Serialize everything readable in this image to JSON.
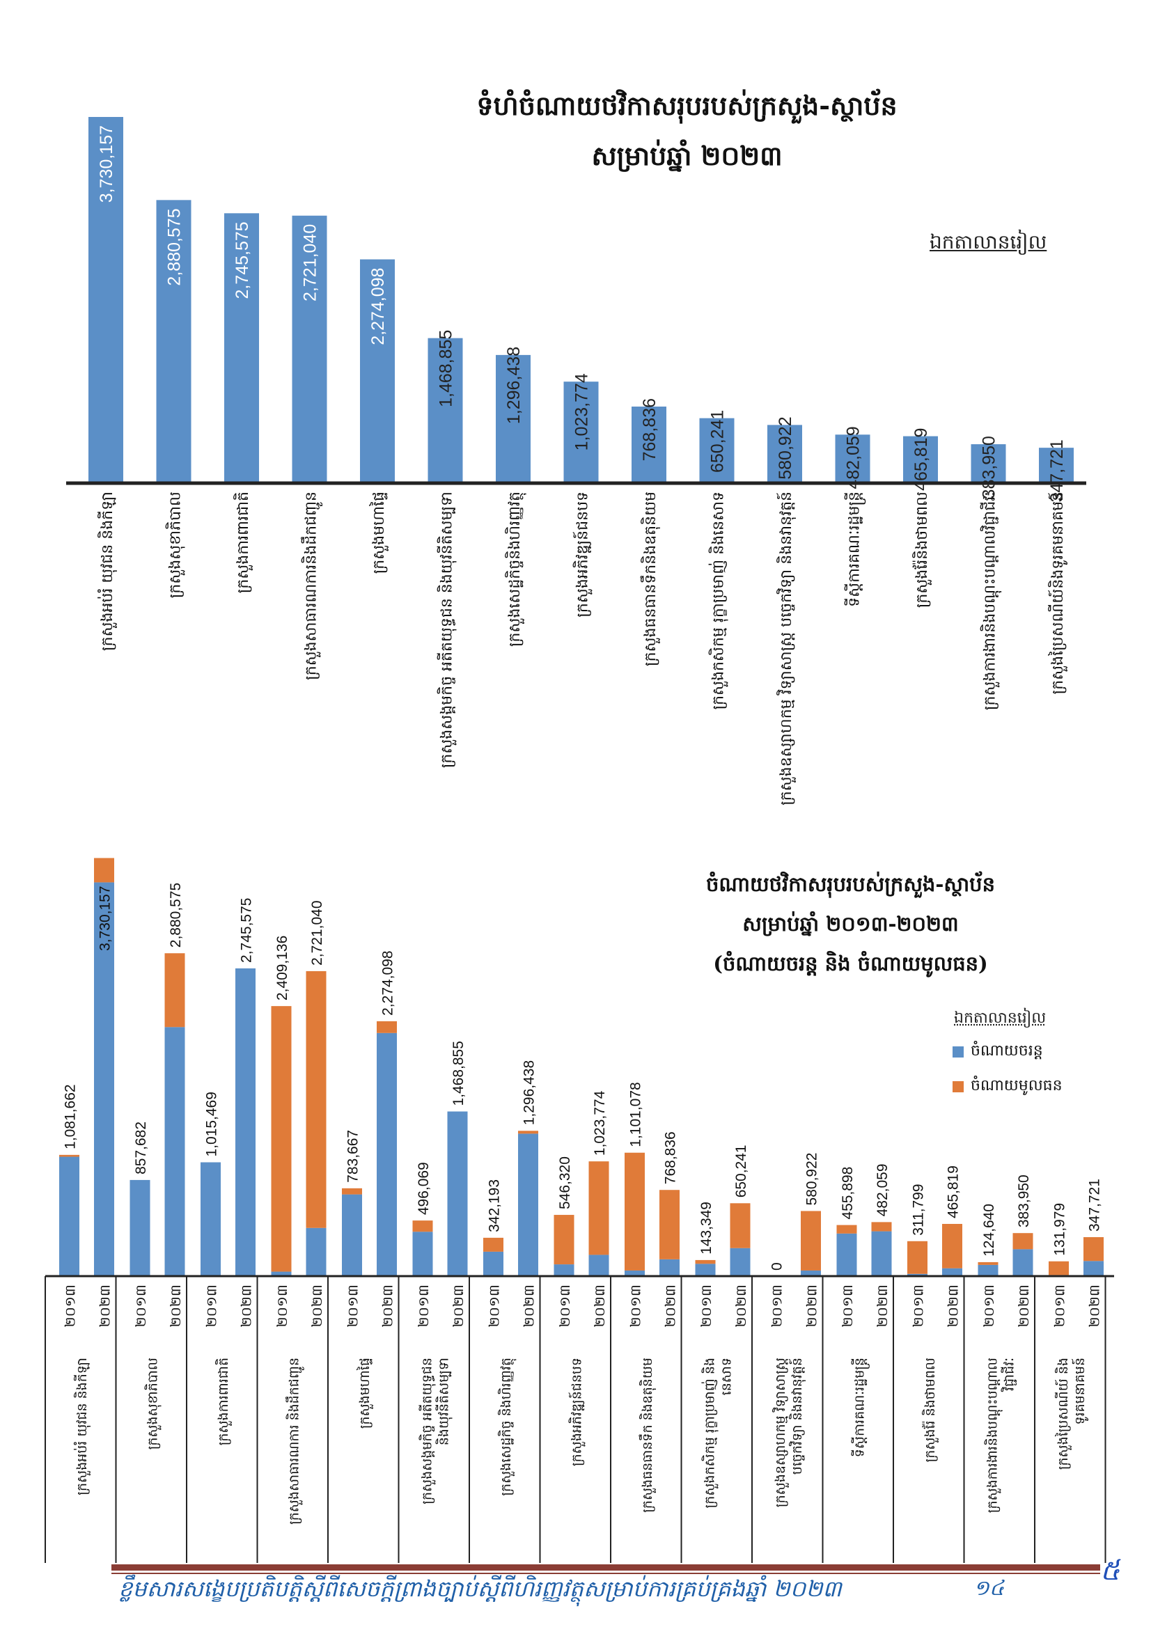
{
  "colors": {
    "current": "#5b8fc7",
    "capital": "#e07b39",
    "axis": "#222222",
    "footer_text": "#1f5fa8",
    "footer_rule": "#8b3d35"
  },
  "chart_data": [
    {
      "type": "bar",
      "title": "ទំហំចំណាយថវិកាសរុបរបស់ក្រសួង-ស្ថាប័ន",
      "subtitle": "សម្រាប់ឆ្នាំ ២០២៣",
      "unit_label": "ឯកតាលានរៀល",
      "xlabel": "",
      "ylabel": "",
      "grid": false,
      "categories": [
        "ក្រសួងអប់រំ យុវជន និងកីឡា",
        "ក្រសួងសុខាភិបាល",
        "ក្រសួងការពារជាតិ",
        "ក្រសួងសាធារណការនិងដឹកជញ្ជូន",
        "ក្រសួងមហាផ្ទៃ",
        "ក្រសួងសង្គមកិច្ច អតីតយុទ្ធជន និងយុវនីតិសម្បទា",
        "ក្រសួងសេដ្ឋកិច្ចនិងហិរញ្ញវត្ថុ",
        "ក្រសួងអភិវឌ្ឍន៍ជនបទ",
        "ក្រសួងធនធានទឹកនិងឧតុនិយម",
        "ក្រសួងកសិកម្ម រុក្ខាប្រមាញ់ និងនេសាទ",
        "ក្រសួងឧស្សាហកម្ម វិទ្យាសាស្ត្រ បច្ចេកវិទ្យា និងនវានុវត្តន៍",
        "ទីស្ដីការគណៈរដ្ឋមន្ត្រី",
        "ក្រសួងរ៉ែនិងថាមពល",
        "ក្រសួងការងារនិងបណ្ដុះបណ្ដាលវិជ្ជាជីវៈ",
        "ក្រសួងប្រៃសណីយ៍និងទូរគមនាគមន៍"
      ],
      "values": [
        3730157,
        2880575,
        2745575,
        2721040,
        2274098,
        1468855,
        1296438,
        1023774,
        768836,
        650241,
        580922,
        482059,
        465819,
        383950,
        347721
      ],
      "value_labels": [
        "3,730,157",
        "2,880,575",
        "2,745,575",
        "2,721,040",
        "2,274,098",
        "1,468,855",
        "1,296,438",
        "1,023,774",
        "768,836",
        "650,241",
        "580,922",
        "482,059",
        "465,819",
        "383,950",
        "347,721"
      ],
      "ylim": [
        0,
        3730157
      ]
    },
    {
      "type": "bar",
      "stacked": true,
      "title": "ចំណាយថវិកាសរុបរបស់ក្រសួង-ស្ថាប័ន",
      "subtitle": "សម្រាប់ឆ្នាំ ២០១៣-២០២៣",
      "subtitle2": "(ចំណាយចរន្ត និង ចំណាយមូលធន)",
      "unit_label": "ឯកតាលានរៀល",
      "legend_position": "right",
      "grid": false,
      "years": [
        "២០១៣",
        "២០២៣"
      ],
      "groups": [
        [
          "ក្រសួងអប់រំ យុវជន និងកីឡា"
        ],
        [
          "ក្រសួងសុខាភិបាល"
        ],
        [
          "ក្រសួងការពារជាតិ"
        ],
        [
          "ក្រសួងសាធារណការ និងដឹកជញ្ជូន"
        ],
        [
          "ក្រសួងមហាផ្ទៃ"
        ],
        [
          "ក្រសួងសង្គមកិច្ច អតីតយុទ្ធជន",
          "និងយុវនីតិសម្បទា"
        ],
        [
          "ក្រសួងសេដ្ឋកិច្ច និងហិរញ្ញវត្ថុ"
        ],
        [
          "ក្រសួងអភិវឌ្ឍន៍ជនបទ"
        ],
        [
          "ក្រសួងធនធានទឹក និងឧតុនិយម"
        ],
        [
          "ក្រសួងកសិកម្ម រុក្ខាប្រមាញ់ និង",
          "នេសាទ"
        ],
        [
          "ក្រសួងឧស្សាហកម្ម វិទ្យាសាស្ត្រ",
          "បច្ចេកវិទ្យា និងនវានុវត្តន៍"
        ],
        [
          "ទីស្ដីការគណៈរដ្ឋមន្ត្រី"
        ],
        [
          "ក្រសួងរ៉ែ និងថាមពល"
        ],
        [
          "ក្រសួងការងារនិងបណ្ដុះបណ្ដាល",
          "វិជ្ជាជីវៈ"
        ],
        [
          "ក្រសួងប្រៃសណីយ៍ និង",
          "ទូរគមនាគមន៍"
        ]
      ],
      "series": [
        {
          "name": "ចំណាយចរន្ត",
          "key": "current",
          "values": [
            1065000,
            3513000,
            857682,
            2222000,
            1015469,
            2745575,
            40000,
            430000,
            729000,
            2169000,
            396000,
            1468855,
            218000,
            1271000,
            105000,
            190000,
            50000,
            150000,
            110000,
            250000,
            0,
            50000,
            380000,
            400000,
            20000,
            70000,
            100000,
            240000,
            10000,
            135000
          ]
        },
        {
          "name": "ចំណាយមូលធន",
          "key": "capital",
          "values": [
            16662,
            217157,
            0,
            658575,
            0,
            0,
            2369136,
            2291040,
            54667,
            105098,
            100069,
            0,
            124193,
            25438,
            441320,
            833774,
            1051078,
            618836,
            33349,
            400241,
            0,
            530922,
            75898,
            82059,
            291799,
            395819,
            24640,
            143950,
            121979,
            212721
          ]
        }
      ],
      "totals": [
        1081662,
        3730157,
        857682,
        2880575,
        1015469,
        2745575,
        2409136,
        2721040,
        783667,
        2274098,
        496069,
        1468855,
        342193,
        1296438,
        546320,
        1023774,
        1101078,
        768836,
        143349,
        650241,
        0,
        580922,
        455898,
        482059,
        311799,
        465819,
        124640,
        383950,
        131979,
        347721
      ],
      "total_labels": [
        "1,081,662",
        "3,730,157",
        "857,682",
        "2,880,575",
        "1,015,469",
        "2,745,575",
        "2,409,136",
        "2,721,040",
        "783,667",
        "2,274,098",
        "496,069",
        "1,468,855",
        "342,193",
        "1,296,438",
        "546,320",
        "1,023,774",
        "1,101,078",
        "768,836",
        "143,349",
        "650,241",
        "0",
        "580,922",
        "455,898",
        "482,059",
        "311,799",
        "465,819",
        "124,640",
        "383,950",
        "131,979",
        "347,721"
      ],
      "ylim": [
        0,
        3730157
      ]
    }
  ],
  "chart1": {
    "title": "ទំហំចំណាយថវិកាសរុបរបស់ក្រសួង-ស្ថាប័ន",
    "subtitle": "សម្រាប់ឆ្នាំ ២០២៣",
    "unit": "ឯកតាលានរៀល"
  },
  "chart2": {
    "title": "ចំណាយថវិកាសរុបរបស់ក្រសួង-ស្ថាប័ន",
    "subtitle": "សម្រាប់ឆ្នាំ ២០១៣-២០២៣",
    "subtitle2": "(ចំណាយចរន្ត និង ចំណាយមូលធន)",
    "unit": "ឯកតាលានរៀល",
    "legend": [
      "ចំណាយចរន្ត",
      "ចំណាយមូលធន"
    ]
  },
  "footer": {
    "text": "ខ្លឹមសារសង្ខេបប្រតិបត្តិស្ដីពីសេចក្ដីព្រាងច្បាប់ស្ដីពីហិរញ្ញវត្ថុសម្រាប់ការគ្រប់គ្រងឆ្នាំ ២០២៣",
    "page_number": "១៤",
    "handwritten_mark": "៥"
  }
}
